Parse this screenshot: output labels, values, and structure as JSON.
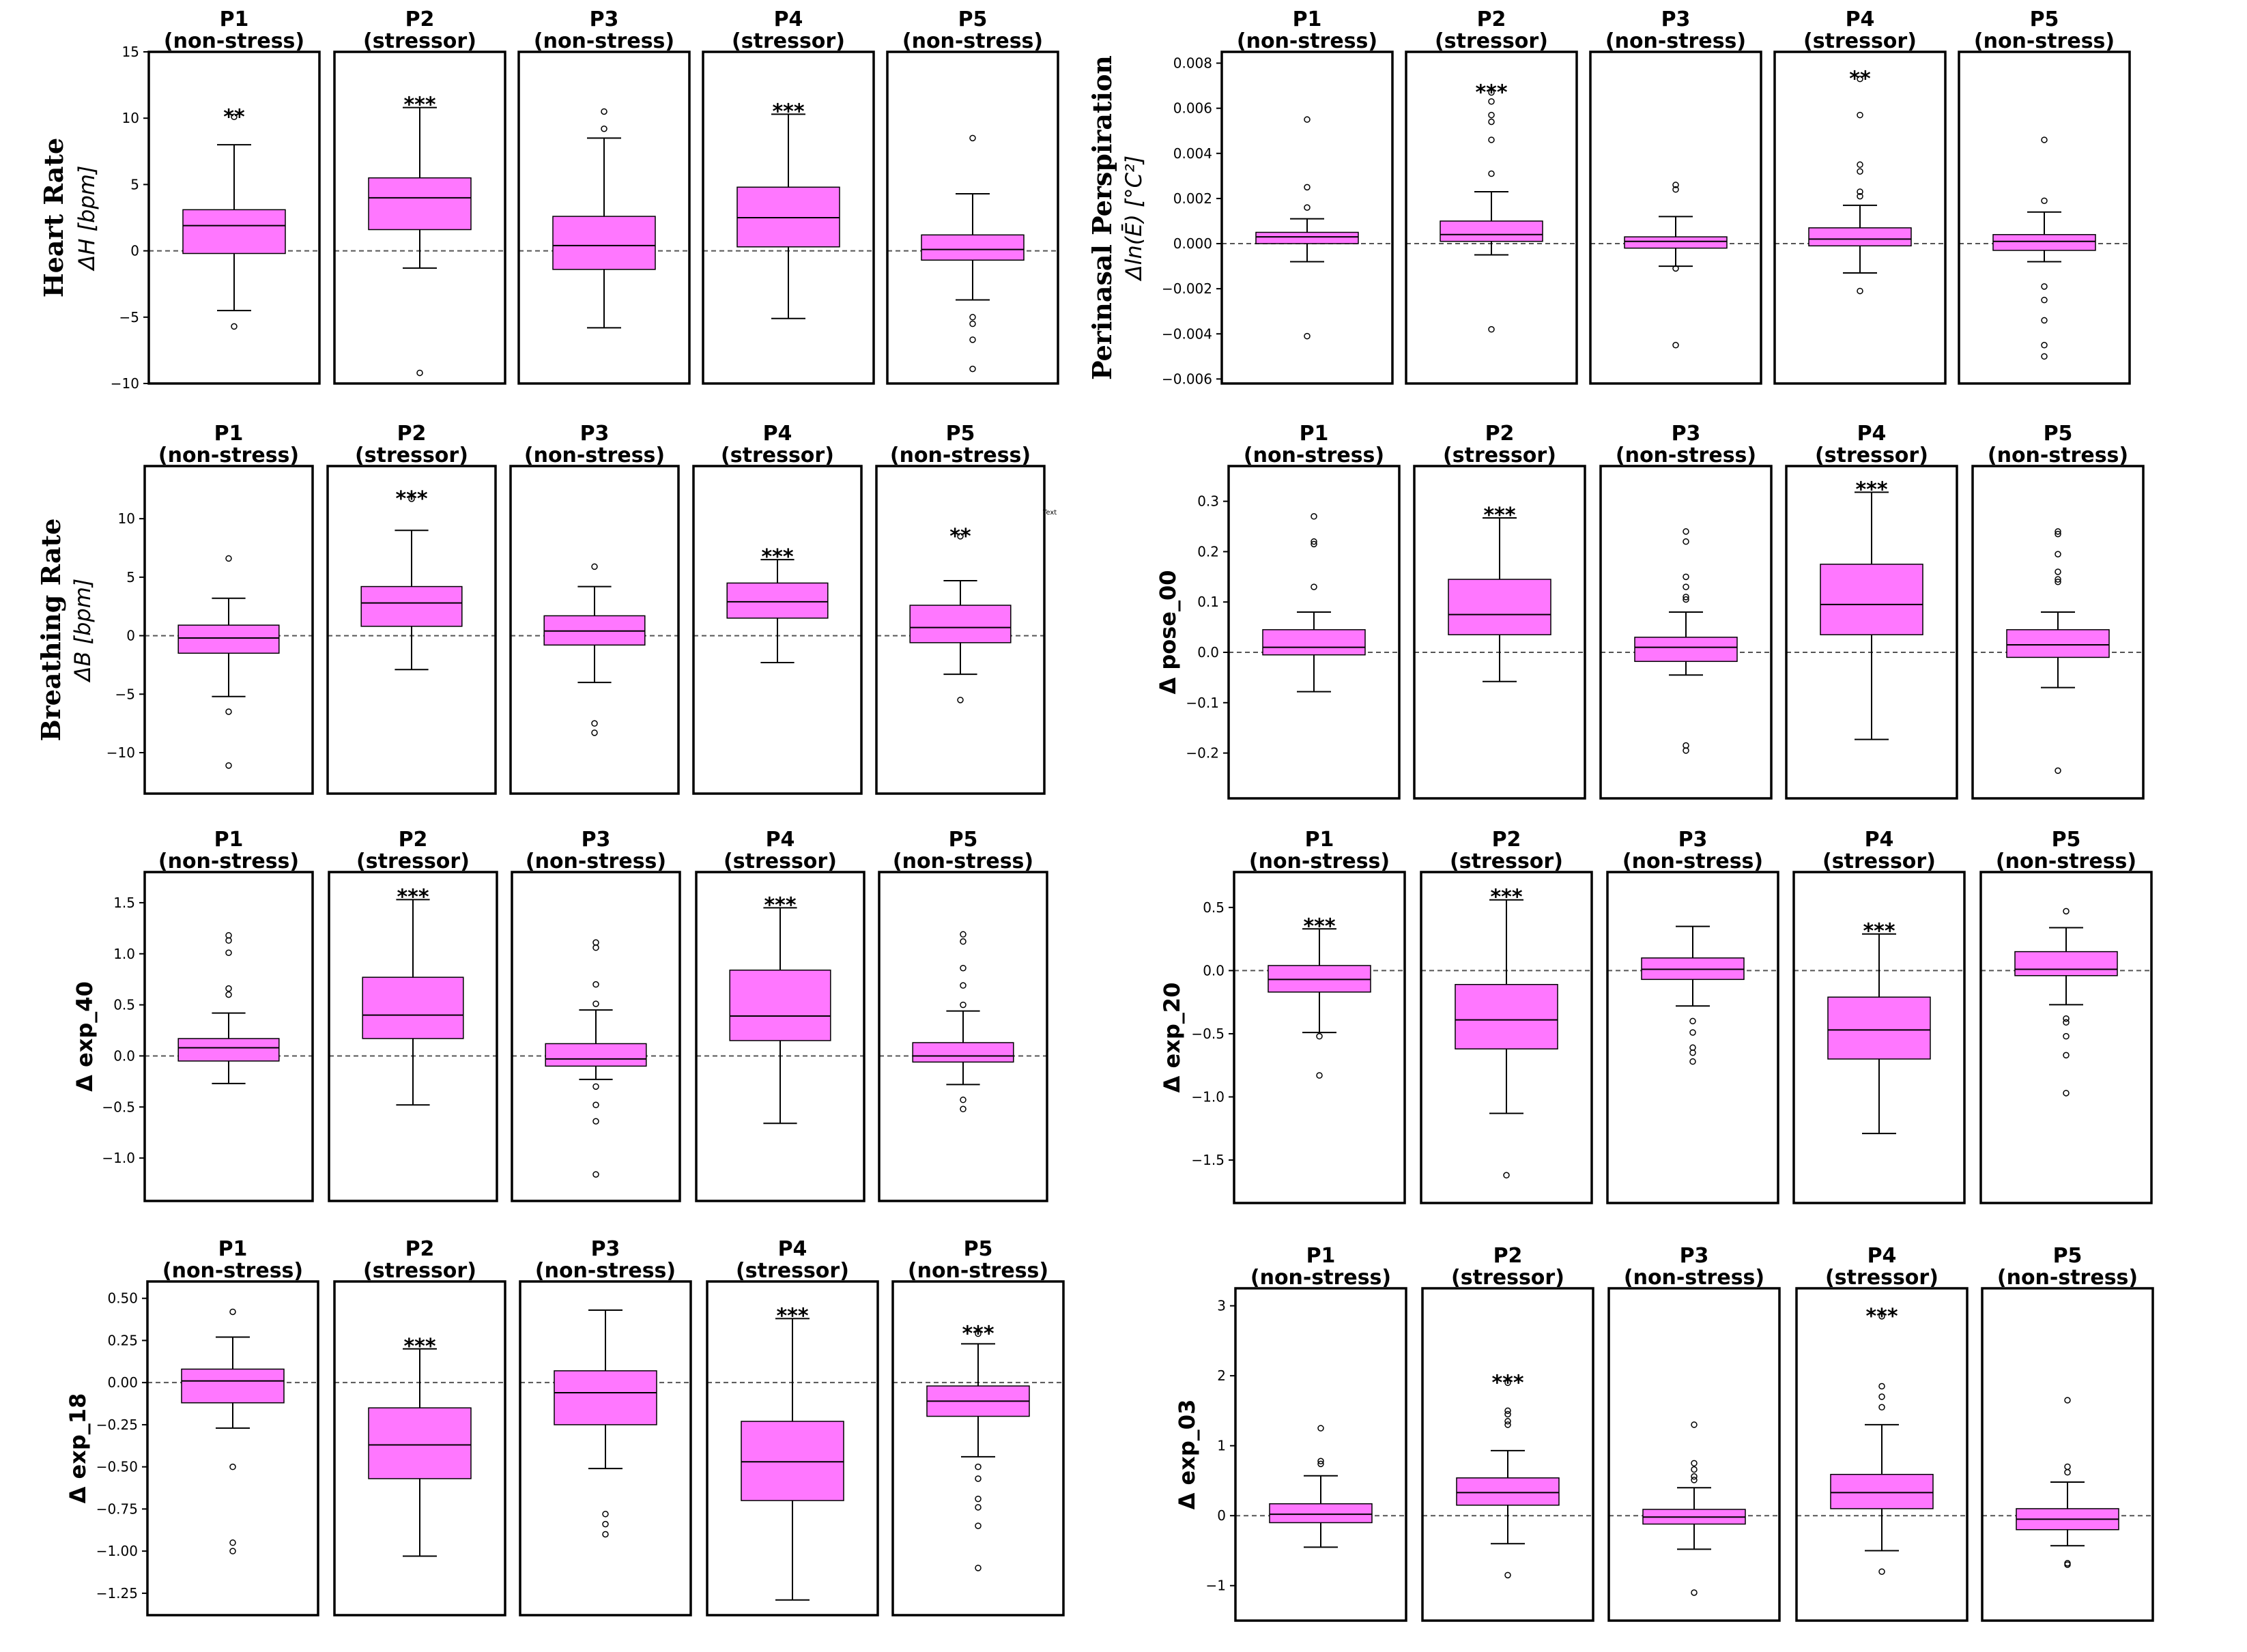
{
  "colors": {
    "box_fill": "#ff77ff",
    "box_edge": "#000000",
    "ref_line": "#555555"
  },
  "panel_labels": [
    "P1",
    "P2",
    "P3",
    "P4",
    "P5"
  ],
  "condition_labels": [
    "(non-stress)",
    "(stressor)",
    "(non-stress)",
    "(stressor)",
    "(non-stress)"
  ],
  "stray_text": "Text",
  "chart_data": [
    {
      "type": "box",
      "id": "hr",
      "ylabel_main": "Heart Rate",
      "ylabel_sub": "ΔH [bpm]",
      "ylim": [
        -10,
        15
      ],
      "yticks": [
        -10,
        -5,
        0,
        5,
        10,
        15
      ],
      "tick_labels": [
        "−10",
        "−5",
        "0",
        "5",
        "10",
        "15"
      ],
      "reference_line": 0,
      "boxes": [
        {
          "q1": -0.2,
          "median": 1.9,
          "q3": 3.1,
          "whislo": -4.5,
          "whishi": 8.0,
          "fliers": [
            -5.7,
            10.1
          ],
          "significance": "**"
        },
        {
          "q1": 1.6,
          "median": 4.0,
          "q3": 5.5,
          "whislo": -1.3,
          "whishi": 10.8,
          "fliers": [
            -9.2
          ],
          "significance": "***"
        },
        {
          "q1": -1.4,
          "median": 0.4,
          "q3": 2.6,
          "whislo": -5.8,
          "whishi": 8.5,
          "fliers": [
            9.2,
            10.5
          ],
          "significance": ""
        },
        {
          "q1": 0.3,
          "median": 2.5,
          "q3": 4.8,
          "whislo": -5.1,
          "whishi": 10.3,
          "fliers": [],
          "significance": "***"
        },
        {
          "q1": -0.7,
          "median": 0.1,
          "q3": 1.2,
          "whislo": -3.7,
          "whishi": 4.3,
          "fliers": [
            8.5,
            -5.0,
            -5.5,
            -6.7,
            -8.9
          ],
          "significance": ""
        }
      ]
    },
    {
      "type": "box",
      "id": "pp",
      "ylabel_main": "Perinasal Perspiration",
      "ylabel_sub": "Δln(Ē) [°C²]",
      "ylim": [
        -0.0062,
        0.0085
      ],
      "yticks": [
        -0.006,
        -0.004,
        -0.002,
        0.0,
        0.002,
        0.004,
        0.006,
        0.008
      ],
      "tick_labels": [
        "−0.006",
        "−0.004",
        "−0.002",
        "0.000",
        "0.002",
        "0.004",
        "0.006",
        "0.008"
      ],
      "reference_line": 0,
      "boxes": [
        {
          "q1": 0.0,
          "median": 0.0003,
          "q3": 0.0005,
          "whislo": -0.0008,
          "whishi": 0.0011,
          "fliers": [
            0.0055,
            0.0025,
            0.0016,
            -0.0041
          ],
          "significance": ""
        },
        {
          "q1": 0.0001,
          "median": 0.0004,
          "q3": 0.001,
          "whislo": -0.0005,
          "whishi": 0.0023,
          "fliers": [
            0.0067,
            0.0063,
            0.0057,
            0.0054,
            0.0046,
            0.0031,
            -0.0038
          ],
          "significance": "***"
        },
        {
          "q1": -0.0002,
          "median": 0.0001,
          "q3": 0.0003,
          "whislo": -0.001,
          "whishi": 0.0012,
          "fliers": [
            0.0026,
            0.0024,
            -0.0011,
            -0.0045
          ],
          "significance": ""
        },
        {
          "q1": -0.0001,
          "median": 0.0002,
          "q3": 0.0007,
          "whislo": -0.0013,
          "whishi": 0.0017,
          "fliers": [
            0.0073,
            0.0057,
            0.0035,
            0.0032,
            0.0023,
            0.0021,
            -0.0021
          ],
          "significance": "**"
        },
        {
          "q1": -0.0003,
          "median": 0.0001,
          "q3": 0.0004,
          "whislo": -0.0008,
          "whishi": 0.0014,
          "fliers": [
            0.0046,
            0.0019,
            -0.0019,
            -0.0025,
            -0.0034,
            -0.0045,
            -0.005
          ],
          "significance": ""
        }
      ]
    },
    {
      "type": "box",
      "id": "br",
      "ylabel_main": "Breathing Rate",
      "ylabel_sub": "ΔB [bpm]",
      "ylim": [
        -13.5,
        14.5
      ],
      "yticks": [
        -10,
        -5,
        0,
        5,
        10
      ],
      "tick_labels": [
        "−10",
        "−5",
        "0",
        "5",
        "10"
      ],
      "reference_line": 0,
      "boxes": [
        {
          "q1": -1.5,
          "median": -0.2,
          "q3": 0.9,
          "whislo": -5.2,
          "whishi": 3.2,
          "fliers": [
            6.6,
            -6.5,
            -11.1
          ],
          "significance": ""
        },
        {
          "q1": 0.8,
          "median": 2.8,
          "q3": 4.2,
          "whislo": -2.9,
          "whishi": 9.0,
          "fliers": [
            11.7
          ],
          "significance": "***"
        },
        {
          "q1": -0.8,
          "median": 0.4,
          "q3": 1.7,
          "whislo": -4.0,
          "whishi": 4.2,
          "fliers": [
            5.9,
            -7.5,
            -8.3
          ],
          "significance": ""
        },
        {
          "q1": 1.5,
          "median": 2.9,
          "q3": 4.5,
          "whislo": -2.3,
          "whishi": 6.5,
          "fliers": [],
          "significance": "***"
        },
        {
          "q1": -0.6,
          "median": 0.7,
          "q3": 2.6,
          "whislo": -3.3,
          "whishi": 4.7,
          "fliers": [
            8.5,
            -5.5
          ],
          "significance": "**"
        }
      ]
    },
    {
      "type": "box",
      "id": "pose00",
      "ylabel_main": "",
      "ylabel_sub": "Δ pose_00",
      "ylim": [
        -0.29,
        0.37
      ],
      "yticks": [
        -0.2,
        -0.1,
        0.0,
        0.1,
        0.2,
        0.3
      ],
      "tick_labels": [
        "−0.2",
        "−0.1",
        "0.0",
        "0.1",
        "0.2",
        "0.3"
      ],
      "reference_line": 0,
      "boxes": [
        {
          "q1": -0.005,
          "median": 0.01,
          "q3": 0.045,
          "whislo": -0.078,
          "whishi": 0.08,
          "fliers": [
            0.27,
            0.22,
            0.215,
            0.13
          ],
          "significance": ""
        },
        {
          "q1": 0.035,
          "median": 0.075,
          "q3": 0.145,
          "whislo": -0.058,
          "whishi": 0.267,
          "fliers": [],
          "significance": "***"
        },
        {
          "q1": -0.018,
          "median": 0.01,
          "q3": 0.03,
          "whislo": -0.045,
          "whishi": 0.08,
          "fliers": [
            0.24,
            0.22,
            0.15,
            0.13,
            0.11,
            0.105,
            -0.185,
            -0.195
          ],
          "significance": ""
        },
        {
          "q1": 0.035,
          "median": 0.095,
          "q3": 0.175,
          "whislo": -0.173,
          "whishi": 0.318,
          "fliers": [],
          "significance": "***"
        },
        {
          "q1": -0.01,
          "median": 0.015,
          "q3": 0.045,
          "whislo": -0.07,
          "whishi": 0.08,
          "fliers": [
            0.24,
            0.235,
            0.195,
            0.16,
            0.145,
            0.14,
            -0.235
          ],
          "significance": ""
        }
      ]
    },
    {
      "type": "box",
      "id": "exp40",
      "ylabel_main": "",
      "ylabel_sub": "Δ exp_40",
      "ylim": [
        -1.42,
        1.8
      ],
      "yticks": [
        -1.0,
        -0.5,
        0.0,
        0.5,
        1.0,
        1.5
      ],
      "tick_labels": [
        "−1.0",
        "−0.5",
        "0.0",
        "0.5",
        "1.0",
        "1.5"
      ],
      "reference_line": 0,
      "boxes": [
        {
          "q1": -0.05,
          "median": 0.08,
          "q3": 0.17,
          "whislo": -0.27,
          "whishi": 0.42,
          "fliers": [
            1.18,
            1.13,
            1.01,
            0.66,
            0.6
          ],
          "significance": ""
        },
        {
          "q1": 0.17,
          "median": 0.4,
          "q3": 0.77,
          "whislo": -0.48,
          "whishi": 1.53,
          "fliers": [],
          "significance": "***"
        },
        {
          "q1": -0.1,
          "median": -0.03,
          "q3": 0.12,
          "whislo": -0.23,
          "whishi": 0.45,
          "fliers": [
            1.11,
            1.06,
            0.7,
            0.51,
            -0.3,
            -0.48,
            -0.64,
            -1.16
          ],
          "significance": ""
        },
        {
          "q1": 0.15,
          "median": 0.39,
          "q3": 0.84,
          "whislo": -0.66,
          "whishi": 1.45,
          "fliers": [],
          "significance": "***"
        },
        {
          "q1": -0.06,
          "median": 0.0,
          "q3": 0.13,
          "whislo": -0.28,
          "whishi": 0.44,
          "fliers": [
            1.19,
            1.12,
            0.86,
            0.69,
            0.5,
            -0.43,
            -0.52
          ],
          "significance": ""
        }
      ]
    },
    {
      "type": "box",
      "id": "exp20",
      "ylabel_main": "",
      "ylabel_sub": "Δ exp_20",
      "ylim": [
        -1.84,
        0.78
      ],
      "yticks": [
        -1.5,
        -1.0,
        -0.5,
        0.0,
        0.5
      ],
      "tick_labels": [
        "−1.5",
        "−1.0",
        "−0.5",
        "0.0",
        "0.5"
      ],
      "reference_line": 0,
      "boxes": [
        {
          "q1": -0.17,
          "median": -0.07,
          "q3": 0.04,
          "whislo": -0.49,
          "whishi": 0.33,
          "fliers": [
            -0.52,
            -0.83
          ],
          "significance": "***"
        },
        {
          "q1": -0.62,
          "median": -0.39,
          "q3": -0.11,
          "whislo": -1.13,
          "whishi": 0.56,
          "fliers": [
            -1.62
          ],
          "significance": "***"
        },
        {
          "q1": -0.07,
          "median": 0.01,
          "q3": 0.1,
          "whislo": -0.28,
          "whishi": 0.35,
          "fliers": [
            -0.4,
            -0.49,
            -0.61,
            -0.65,
            -0.72
          ],
          "significance": ""
        },
        {
          "q1": -0.7,
          "median": -0.47,
          "q3": -0.21,
          "whislo": -1.29,
          "whishi": 0.29,
          "fliers": [],
          "significance": "***"
        },
        {
          "q1": -0.04,
          "median": 0.01,
          "q3": 0.15,
          "whislo": -0.27,
          "whishi": 0.34,
          "fliers": [
            0.47,
            -0.38,
            -0.41,
            -0.52,
            -0.67,
            -0.97
          ],
          "significance": ""
        }
      ]
    },
    {
      "type": "box",
      "id": "exp18",
      "ylabel_main": "",
      "ylabel_sub": "Δ exp_18",
      "ylim": [
        -1.38,
        0.6
      ],
      "yticks": [
        -1.25,
        -1.0,
        -0.75,
        -0.5,
        -0.25,
        0.0,
        0.25,
        0.5
      ],
      "tick_labels": [
        "−1.25",
        "−1.00",
        "−0.75",
        "−0.50",
        "−0.25",
        "0.00",
        "0.25",
        "0.50"
      ],
      "reference_line": 0,
      "boxes": [
        {
          "q1": -0.12,
          "median": 0.01,
          "q3": 0.08,
          "whislo": -0.27,
          "whishi": 0.27,
          "fliers": [
            0.42,
            -0.5,
            -0.95,
            -1.0
          ],
          "significance": ""
        },
        {
          "q1": -0.57,
          "median": -0.37,
          "q3": -0.15,
          "whislo": -1.03,
          "whishi": 0.2,
          "fliers": [],
          "significance": "***"
        },
        {
          "q1": -0.25,
          "median": -0.06,
          "q3": 0.07,
          "whislo": -0.51,
          "whishi": 0.43,
          "fliers": [
            -0.78,
            -0.84,
            -0.9
          ],
          "significance": ""
        },
        {
          "q1": -0.7,
          "median": -0.47,
          "q3": -0.23,
          "whislo": -1.29,
          "whishi": 0.38,
          "fliers": [],
          "significance": "***"
        },
        {
          "q1": -0.2,
          "median": -0.11,
          "q3": -0.02,
          "whislo": -0.44,
          "whishi": 0.23,
          "fliers": [
            0.29,
            -0.5,
            -0.57,
            -0.69,
            -0.74,
            -0.85,
            -1.1
          ],
          "significance": "***"
        }
      ]
    },
    {
      "type": "box",
      "id": "exp03",
      "ylabel_main": "",
      "ylabel_sub": "Δ exp_03",
      "ylim": [
        -1.5,
        3.25
      ],
      "yticks": [
        -1,
        0,
        1,
        2,
        3
      ],
      "tick_labels": [
        "−1",
        "0",
        "1",
        "2",
        "3"
      ],
      "reference_line": 0,
      "boxes": [
        {
          "q1": -0.1,
          "median": 0.02,
          "q3": 0.17,
          "whislo": -0.45,
          "whishi": 0.57,
          "fliers": [
            1.25,
            0.78,
            0.74
          ],
          "significance": ""
        },
        {
          "q1": 0.15,
          "median": 0.33,
          "q3": 0.54,
          "whislo": -0.4,
          "whishi": 0.93,
          "fliers": [
            1.9,
            1.5,
            1.45,
            1.35,
            1.3,
            -0.85
          ],
          "significance": "***"
        },
        {
          "q1": -0.12,
          "median": -0.02,
          "q3": 0.09,
          "whislo": -0.48,
          "whishi": 0.4,
          "fliers": [
            1.3,
            0.75,
            0.66,
            0.56,
            0.51,
            -1.1
          ],
          "significance": ""
        },
        {
          "q1": 0.1,
          "median": 0.33,
          "q3": 0.59,
          "whislo": -0.5,
          "whishi": 1.3,
          "fliers": [
            2.85,
            1.85,
            1.7,
            1.55,
            -0.8
          ],
          "significance": "***"
        },
        {
          "q1": -0.2,
          "median": -0.05,
          "q3": 0.1,
          "whislo": -0.43,
          "whishi": 0.48,
          "fliers": [
            1.65,
            0.7,
            0.62,
            -0.68,
            -0.7
          ],
          "significance": ""
        }
      ]
    }
  ]
}
